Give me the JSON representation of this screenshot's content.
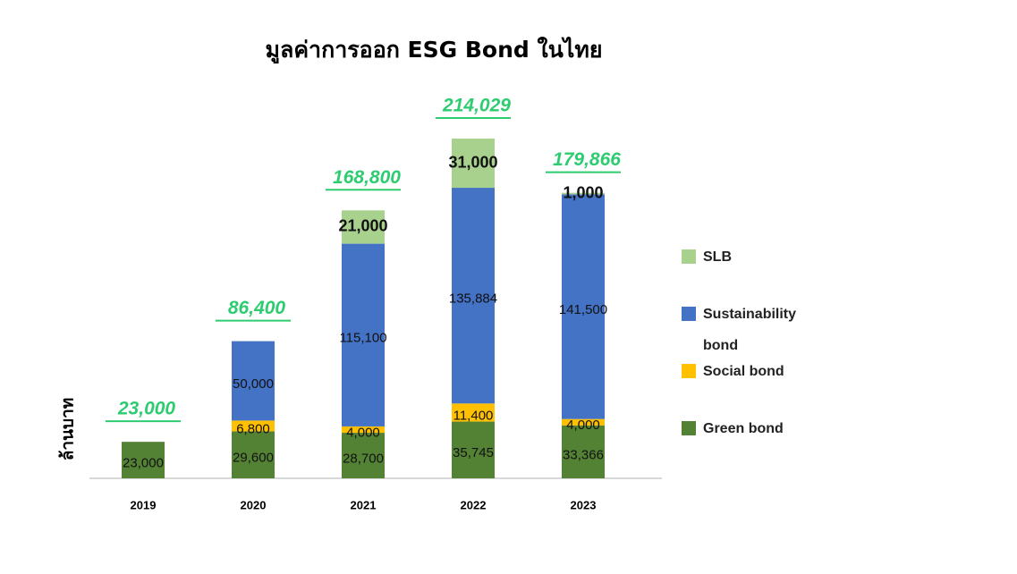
{
  "chart_data": {
    "type": "stacked-bar",
    "title": "มูลค่าการออก ESG Bond ในไทย",
    "y_label": "ล้านบาท",
    "categories": [
      "2019",
      "2020",
      "2021",
      "2022",
      "2023"
    ],
    "series": [
      {
        "name": "Green bond",
        "color": "#548235",
        "values": [
          23000,
          29600,
          28700,
          35745,
          33366
        ],
        "value_labels": [
          "23,000",
          "29,600",
          "28,700",
          "35,745",
          "33,366"
        ]
      },
      {
        "name": "Social bond",
        "color": "#ffc000",
        "values": [
          null,
          6800,
          4000,
          11400,
          4000
        ],
        "value_labels": [
          null,
          "6,800",
          "4,000",
          "11,400",
          "4,000"
        ]
      },
      {
        "name": "Sustainability bond",
        "color": "#4472c4",
        "values": [
          null,
          50000,
          115100,
          135884,
          141500
        ],
        "value_labels": [
          null,
          "50,000",
          "115,100",
          "135,884",
          "141,500"
        ]
      },
      {
        "name": "SLB",
        "color": "#a9d18e",
        "values": [
          null,
          null,
          21000,
          31000,
          1000
        ],
        "value_labels": [
          null,
          null,
          "21,000",
          "31,000",
          "1,000"
        ]
      }
    ],
    "totals": [
      23000,
      86400,
      168800,
      214029,
      179866
    ],
    "total_labels": [
      "23,000",
      "86,400",
      "168,800",
      "214,029",
      "179,866"
    ],
    "total_color": "#2ecc71",
    "legend": "right"
  }
}
